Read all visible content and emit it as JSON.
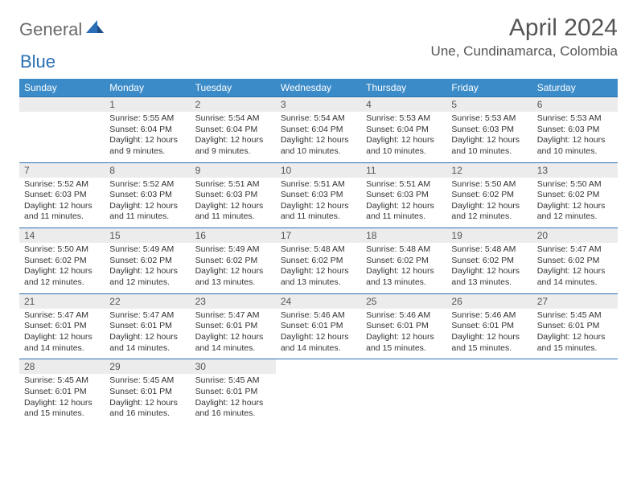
{
  "logo": {
    "text1": "General",
    "text2": "Blue"
  },
  "title": "April 2024",
  "location": "Une, Cundinamarca, Colombia",
  "colors": {
    "header_bg": "#3b8bc9",
    "rule": "#2a6fb5",
    "daynum_bg": "#ececec",
    "text": "#333333",
    "title_text": "#555555"
  },
  "dayNames": [
    "Sunday",
    "Monday",
    "Tuesday",
    "Wednesday",
    "Thursday",
    "Friday",
    "Saturday"
  ],
  "weeks": [
    [
      null,
      {
        "n": "1",
        "sr": "5:55 AM",
        "ss": "6:04 PM",
        "dl": "12 hours and 9 minutes."
      },
      {
        "n": "2",
        "sr": "5:54 AM",
        "ss": "6:04 PM",
        "dl": "12 hours and 9 minutes."
      },
      {
        "n": "3",
        "sr": "5:54 AM",
        "ss": "6:04 PM",
        "dl": "12 hours and 10 minutes."
      },
      {
        "n": "4",
        "sr": "5:53 AM",
        "ss": "6:04 PM",
        "dl": "12 hours and 10 minutes."
      },
      {
        "n": "5",
        "sr": "5:53 AM",
        "ss": "6:03 PM",
        "dl": "12 hours and 10 minutes."
      },
      {
        "n": "6",
        "sr": "5:53 AM",
        "ss": "6:03 PM",
        "dl": "12 hours and 10 minutes."
      }
    ],
    [
      {
        "n": "7",
        "sr": "5:52 AM",
        "ss": "6:03 PM",
        "dl": "12 hours and 11 minutes."
      },
      {
        "n": "8",
        "sr": "5:52 AM",
        "ss": "6:03 PM",
        "dl": "12 hours and 11 minutes."
      },
      {
        "n": "9",
        "sr": "5:51 AM",
        "ss": "6:03 PM",
        "dl": "12 hours and 11 minutes."
      },
      {
        "n": "10",
        "sr": "5:51 AM",
        "ss": "6:03 PM",
        "dl": "12 hours and 11 minutes."
      },
      {
        "n": "11",
        "sr": "5:51 AM",
        "ss": "6:03 PM",
        "dl": "12 hours and 11 minutes."
      },
      {
        "n": "12",
        "sr": "5:50 AM",
        "ss": "6:02 PM",
        "dl": "12 hours and 12 minutes."
      },
      {
        "n": "13",
        "sr": "5:50 AM",
        "ss": "6:02 PM",
        "dl": "12 hours and 12 minutes."
      }
    ],
    [
      {
        "n": "14",
        "sr": "5:50 AM",
        "ss": "6:02 PM",
        "dl": "12 hours and 12 minutes."
      },
      {
        "n": "15",
        "sr": "5:49 AM",
        "ss": "6:02 PM",
        "dl": "12 hours and 12 minutes."
      },
      {
        "n": "16",
        "sr": "5:49 AM",
        "ss": "6:02 PM",
        "dl": "12 hours and 13 minutes."
      },
      {
        "n": "17",
        "sr": "5:48 AM",
        "ss": "6:02 PM",
        "dl": "12 hours and 13 minutes."
      },
      {
        "n": "18",
        "sr": "5:48 AM",
        "ss": "6:02 PM",
        "dl": "12 hours and 13 minutes."
      },
      {
        "n": "19",
        "sr": "5:48 AM",
        "ss": "6:02 PM",
        "dl": "12 hours and 13 minutes."
      },
      {
        "n": "20",
        "sr": "5:47 AM",
        "ss": "6:02 PM",
        "dl": "12 hours and 14 minutes."
      }
    ],
    [
      {
        "n": "21",
        "sr": "5:47 AM",
        "ss": "6:01 PM",
        "dl": "12 hours and 14 minutes."
      },
      {
        "n": "22",
        "sr": "5:47 AM",
        "ss": "6:01 PM",
        "dl": "12 hours and 14 minutes."
      },
      {
        "n": "23",
        "sr": "5:47 AM",
        "ss": "6:01 PM",
        "dl": "12 hours and 14 minutes."
      },
      {
        "n": "24",
        "sr": "5:46 AM",
        "ss": "6:01 PM",
        "dl": "12 hours and 14 minutes."
      },
      {
        "n": "25",
        "sr": "5:46 AM",
        "ss": "6:01 PM",
        "dl": "12 hours and 15 minutes."
      },
      {
        "n": "26",
        "sr": "5:46 AM",
        "ss": "6:01 PM",
        "dl": "12 hours and 15 minutes."
      },
      {
        "n": "27",
        "sr": "5:45 AM",
        "ss": "6:01 PM",
        "dl": "12 hours and 15 minutes."
      }
    ],
    [
      {
        "n": "28",
        "sr": "5:45 AM",
        "ss": "6:01 PM",
        "dl": "12 hours and 15 minutes."
      },
      {
        "n": "29",
        "sr": "5:45 AM",
        "ss": "6:01 PM",
        "dl": "12 hours and 16 minutes."
      },
      {
        "n": "30",
        "sr": "5:45 AM",
        "ss": "6:01 PM",
        "dl": "12 hours and 16 minutes."
      },
      null,
      null,
      null,
      null
    ]
  ],
  "labels": {
    "sunrise": "Sunrise:",
    "sunset": "Sunset:",
    "daylight": "Daylight:"
  }
}
